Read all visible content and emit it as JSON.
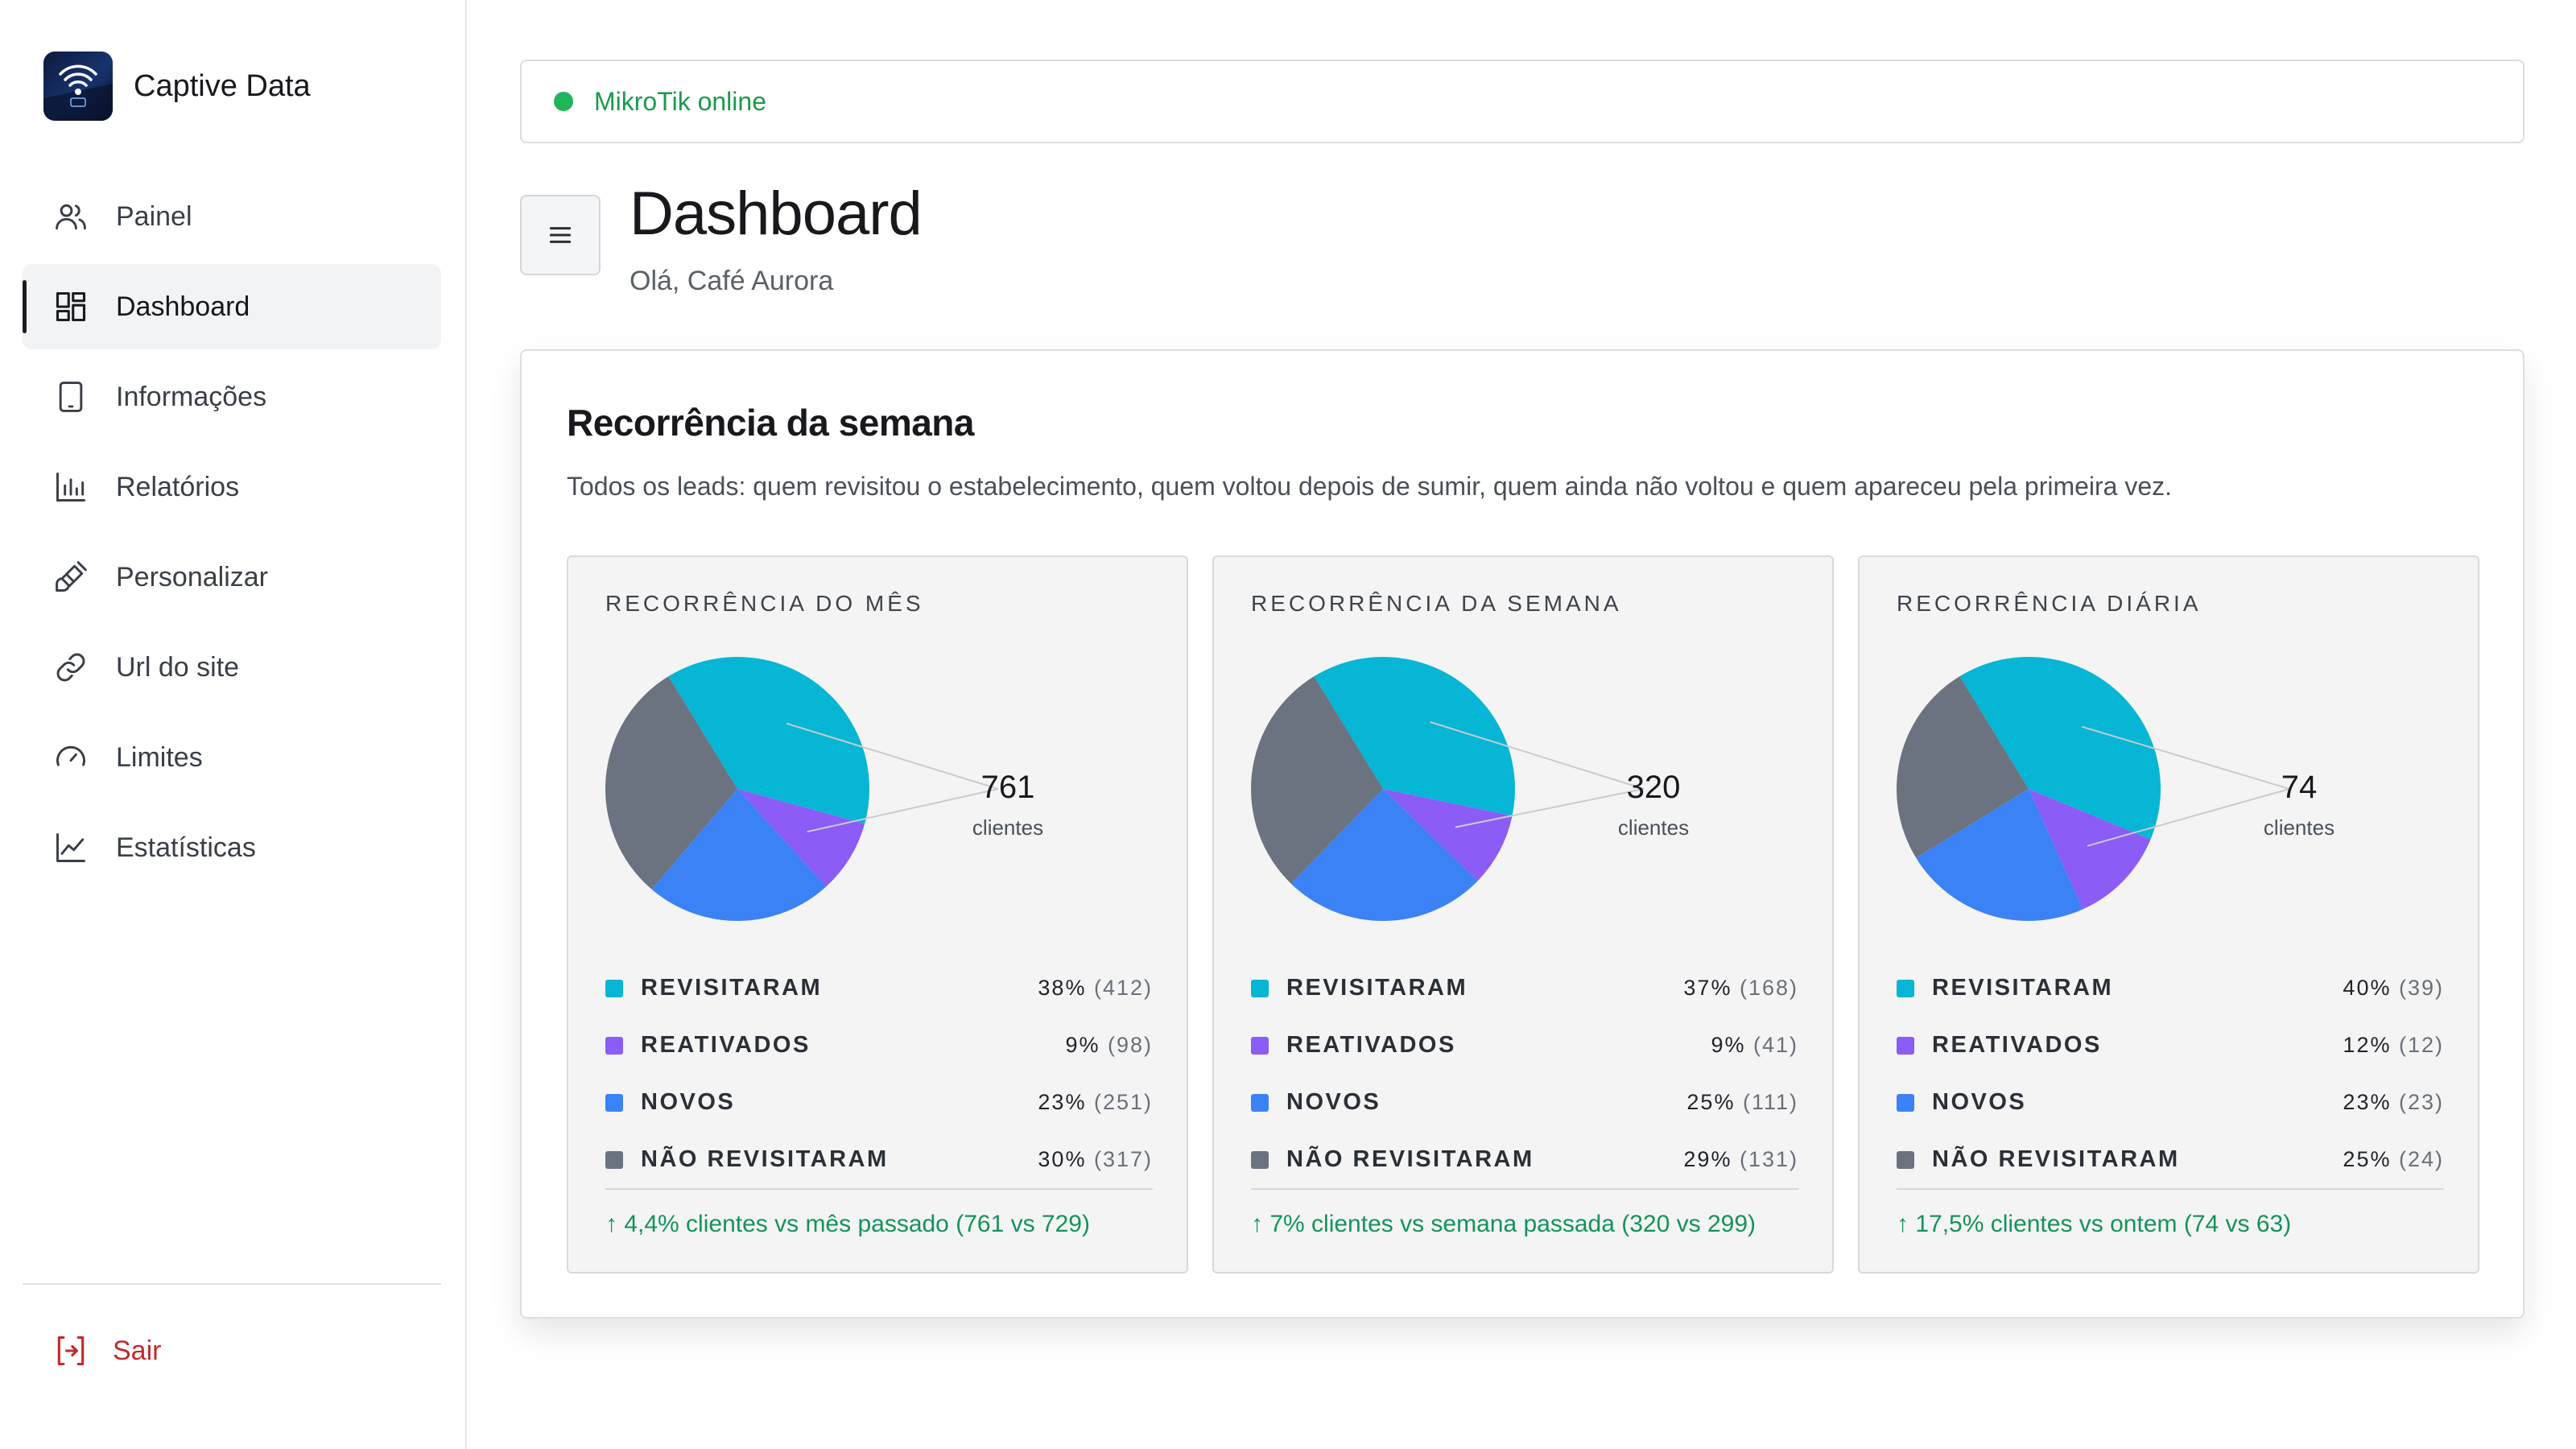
{
  "app": {
    "name": "Captive Data"
  },
  "sidebar": {
    "items": [
      {
        "label": "Painel",
        "icon": "users-icon"
      },
      {
        "label": "Dashboard",
        "icon": "layout-grid-icon",
        "active": true
      },
      {
        "label": "Informações",
        "icon": "tablet-icon"
      },
      {
        "label": "Relatórios",
        "icon": "bar-chart-icon"
      },
      {
        "label": "Personalizar",
        "icon": "brush-icon"
      },
      {
        "label": "Url do site",
        "icon": "link-icon"
      },
      {
        "label": "Limites",
        "icon": "gauge-icon"
      },
      {
        "label": "Estatísticas",
        "icon": "line-chart-icon"
      }
    ],
    "logout_label": "Sair"
  },
  "status": {
    "text": "MikroTik online",
    "color": "#22b45a"
  },
  "header": {
    "title": "Dashboard",
    "greeting": "Olá, Café Aurora"
  },
  "card": {
    "title": "Recorrência da semana",
    "description": "Todos os leads: quem revisitou o estabelecimento, quem voltou depois de sumir, quem ainda não voltou e quem apareceu pela primeira vez."
  },
  "colors": {
    "revisitaram": "#06b6d4",
    "reativados": "#8b5cf6",
    "novos": "#3b82f6",
    "nao_revisitaram": "#6b7280",
    "trend_positive": "#14935a"
  },
  "chart_data": [
    {
      "type": "pie",
      "title": "RECORRÊNCIA DO MÊS",
      "total": "761",
      "total_label": "clientes",
      "slices": [
        {
          "label": "REVISITARAM",
          "percent": 38,
          "pct_text": "38%",
          "count_text": "(412)"
        },
        {
          "label": "REATIVADOS",
          "percent": 9,
          "pct_text": "9%",
          "count_text": "(98)"
        },
        {
          "label": "NOVOS",
          "percent": 23,
          "pct_text": "23%",
          "count_text": "(251)"
        },
        {
          "label": "NÃO REVISITARAM",
          "percent": 30,
          "pct_text": "30%",
          "count_text": "(317)"
        }
      ],
      "trend": "↑ 4,4% clientes vs mês passado (761 vs 729)"
    },
    {
      "type": "pie",
      "title": "RECORRÊNCIA DA SEMANA",
      "total": "320",
      "total_label": "clientes",
      "slices": [
        {
          "label": "REVISITARAM",
          "percent": 37,
          "pct_text": "37%",
          "count_text": "(168)"
        },
        {
          "label": "REATIVADOS",
          "percent": 9,
          "pct_text": "9%",
          "count_text": "(41)"
        },
        {
          "label": "NOVOS",
          "percent": 25,
          "pct_text": "25%",
          "count_text": "(111)"
        },
        {
          "label": "NÃO REVISITARAM",
          "percent": 29,
          "pct_text": "29%",
          "count_text": "(131)"
        }
      ],
      "trend": "↑ 7% clientes vs semana passada (320 vs 299)"
    },
    {
      "type": "pie",
      "title": "RECORRÊNCIA DIÁRIA",
      "total": "74",
      "total_label": "clientes",
      "slices": [
        {
          "label": "REVISITARAM",
          "percent": 40,
          "pct_text": "40%",
          "count_text": "(39)"
        },
        {
          "label": "REATIVADOS",
          "percent": 12,
          "pct_text": "12%",
          "count_text": "(12)"
        },
        {
          "label": "NOVOS",
          "percent": 23,
          "pct_text": "23%",
          "count_text": "(23)"
        },
        {
          "label": "NÃO REVISITARAM",
          "percent": 25,
          "pct_text": "25%",
          "count_text": "(24)"
        }
      ],
      "trend": "↑ 17,5% clientes vs ontem (74 vs 63)"
    }
  ]
}
